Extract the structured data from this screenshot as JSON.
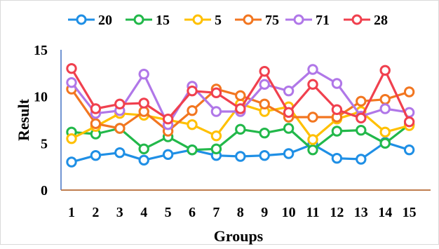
{
  "chart_data": {
    "type": "line",
    "xlabel": "Groups",
    "ylabel": "Result",
    "ylim": [
      0,
      15
    ],
    "yticks": [
      0,
      5,
      10,
      15
    ],
    "grid": false,
    "legend_position": "top",
    "categories": [
      "1",
      "2",
      "3",
      "4",
      "5",
      "6",
      "7",
      "8",
      "9",
      "10",
      "11",
      "12",
      "13",
      "14",
      "15"
    ],
    "series": [
      {
        "name": "20",
        "color": "#1f8fe5",
        "values": [
          3.0,
          3.7,
          4.0,
          3.2,
          3.8,
          4.3,
          3.7,
          3.6,
          3.7,
          3.9,
          4.9,
          3.4,
          3.3,
          5.1,
          4.3
        ]
      },
      {
        "name": "15",
        "color": "#22b84a",
        "values": [
          6.2,
          6.0,
          6.6,
          4.4,
          5.7,
          4.3,
          4.4,
          6.5,
          6.1,
          6.6,
          4.3,
          6.3,
          6.4,
          5.0,
          7.0
        ]
      },
      {
        "name": "5",
        "color": "#ffc000",
        "values": [
          5.5,
          6.8,
          8.2,
          8.0,
          7.5,
          7.0,
          5.8,
          9.2,
          8.4,
          8.9,
          5.4,
          7.6,
          8.4,
          6.2,
          6.9
        ]
      },
      {
        "name": "75",
        "color": "#f27620",
        "values": [
          10.8,
          7.1,
          6.6,
          8.4,
          6.3,
          8.5,
          10.8,
          10.1,
          9.2,
          7.8,
          7.8,
          7.8,
          9.5,
          9.7,
          10.5
        ]
      },
      {
        "name": "71",
        "color": "#b077e8",
        "values": [
          11.5,
          8.2,
          8.5,
          12.4,
          7.0,
          11.1,
          8.4,
          8.4,
          11.3,
          10.6,
          12.9,
          11.4,
          7.9,
          8.7,
          8.3
        ]
      },
      {
        "name": "28",
        "color": "#f0404e",
        "values": [
          13.0,
          8.7,
          9.2,
          9.3,
          7.6,
          10.6,
          10.4,
          8.7,
          12.7,
          8.3,
          11.3,
          8.6,
          7.7,
          12.8,
          7.3
        ]
      }
    ]
  }
}
